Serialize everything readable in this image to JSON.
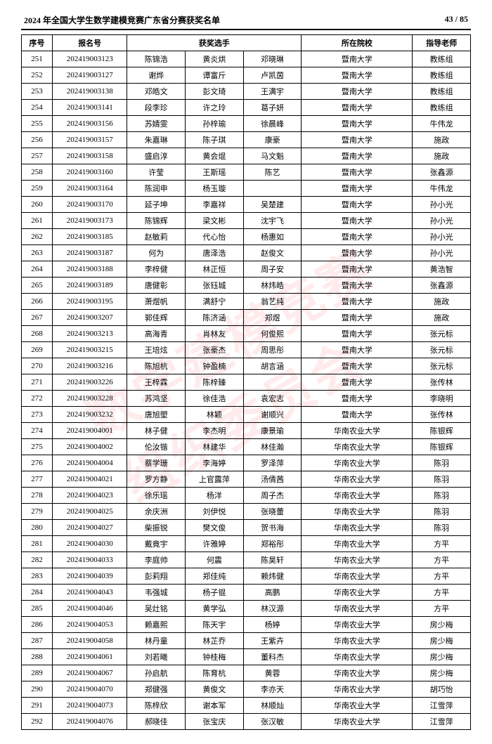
{
  "header": {
    "title": "2024 年全国大学生数学建模竞赛广东省分赛获奖名单",
    "page": "43 / 85"
  },
  "watermark": "数学建模竞赛\n组织委员会",
  "columns": {
    "seq": "序号",
    "reg": "报名号",
    "members": "获奖选手",
    "school": "所在院校",
    "advisor": "指导老师"
  },
  "rows": [
    {
      "seq": "251",
      "reg": "202419003123",
      "m": [
        "陈锦浩",
        "黄炎烘",
        "邓晓琳"
      ],
      "school": "暨南大学",
      "adv": "教练组"
    },
    {
      "seq": "252",
      "reg": "202419003127",
      "m": [
        "谢烨",
        "谭富斤",
        "卢凯茵"
      ],
      "school": "暨南大学",
      "adv": "教练组"
    },
    {
      "seq": "253",
      "reg": "202419003138",
      "m": [
        "邓皓文",
        "彭文琦",
        "王满宇"
      ],
      "school": "暨南大学",
      "adv": "教练组"
    },
    {
      "seq": "254",
      "reg": "202419003141",
      "m": [
        "段李珍",
        "许之玲",
        "葛子妍"
      ],
      "school": "暨南大学",
      "adv": "教练组"
    },
    {
      "seq": "255",
      "reg": "202419003156",
      "m": [
        "苏婧雯",
        "孙梓瑜",
        "徐晨峰"
      ],
      "school": "暨南大学",
      "adv": "牛伟龙"
    },
    {
      "seq": "256",
      "reg": "202419003157",
      "m": [
        "朱嘉琳",
        "陈子琪",
        "康豪"
      ],
      "school": "暨南大学",
      "adv": "施政"
    },
    {
      "seq": "257",
      "reg": "202419003158",
      "m": [
        "盛启淳",
        "黄会焜",
        "马文魁"
      ],
      "school": "暨南大学",
      "adv": "施政"
    },
    {
      "seq": "258",
      "reg": "202419003160",
      "m": [
        "许莹",
        "王斯瑶",
        "陈艺"
      ],
      "school": "暨南大学",
      "adv": "张鑫源"
    },
    {
      "seq": "259",
      "reg": "202419003164",
      "m": [
        "陈润申",
        "杨玉璇",
        "　"
      ],
      "school": "暨南大学",
      "adv": "牛伟龙"
    },
    {
      "seq": "260",
      "reg": "202419003170",
      "m": [
        "延子坤",
        "李嘉祥",
        "吴楚建"
      ],
      "school": "暨南大学",
      "adv": "孙小光"
    },
    {
      "seq": "261",
      "reg": "202419003173",
      "m": [
        "陈锦辉",
        "梁文彬",
        "沈宇飞"
      ],
      "school": "暨南大学",
      "adv": "孙小光"
    },
    {
      "seq": "262",
      "reg": "202419003185",
      "m": [
        "赵敏莉",
        "代心怡",
        "杨惠如"
      ],
      "school": "暨南大学",
      "adv": "孙小光"
    },
    {
      "seq": "263",
      "reg": "202419003187",
      "m": [
        "何为",
        "唐泽浩",
        "赵俊文"
      ],
      "school": "暨南大学",
      "adv": "孙小光"
    },
    {
      "seq": "264",
      "reg": "202419003188",
      "m": [
        "李梓健",
        "林正恒",
        "周子安"
      ],
      "school": "暨南大学",
      "adv": "黄浩智"
    },
    {
      "seq": "265",
      "reg": "202419003189",
      "m": [
        "唐健彰",
        "张钰城",
        "林炜皓"
      ],
      "school": "暨南大学",
      "adv": "张鑫源"
    },
    {
      "seq": "266",
      "reg": "202419003195",
      "m": [
        "萧煜帆",
        "满舒宁",
        "翁艺纯"
      ],
      "school": "暨南大学",
      "adv": "施政"
    },
    {
      "seq": "267",
      "reg": "202419003207",
      "m": [
        "郭佳辉",
        "陈济涵",
        "郑煜"
      ],
      "school": "暨南大学",
      "adv": "施政"
    },
    {
      "seq": "268",
      "reg": "202419003213",
      "m": [
        "高海青",
        "肖林友",
        "何俊熙"
      ],
      "school": "暨南大学",
      "adv": "张元标"
    },
    {
      "seq": "269",
      "reg": "202419003215",
      "m": [
        "王培炫",
        "张豪杰",
        "周思彤"
      ],
      "school": "暨南大学",
      "adv": "张元标"
    },
    {
      "seq": "270",
      "reg": "202419003216",
      "m": [
        "陈旭杭",
        "钟盈楠",
        "胡言涵"
      ],
      "school": "暨南大学",
      "adv": "张元标"
    },
    {
      "seq": "271",
      "reg": "202419003226",
      "m": [
        "王梓霖",
        "陈梓臻",
        "　"
      ],
      "school": "暨南大学",
      "adv": "张传林"
    },
    {
      "seq": "272",
      "reg": "202419003228",
      "m": [
        "苏鸿坚",
        "徐佳浩",
        "袁宏志"
      ],
      "school": "暨南大学",
      "adv": "李晓明"
    },
    {
      "seq": "273",
      "reg": "202419003232",
      "m": [
        "唐旭塱",
        "林颖",
        "谢顺兴"
      ],
      "school": "暨南大学",
      "adv": "张传林"
    },
    {
      "seq": "274",
      "reg": "202419004001",
      "m": [
        "林子健",
        "李杰明",
        "康景瑜"
      ],
      "school": "华南农业大学",
      "adv": "陈银辉"
    },
    {
      "seq": "275",
      "reg": "202419004002",
      "m": [
        "伦汝锴",
        "林建华",
        "林佳瀚"
      ],
      "school": "华南农业大学",
      "adv": "陈银辉"
    },
    {
      "seq": "276",
      "reg": "202419004004",
      "m": [
        "蔡学珊",
        "李海婷",
        "罗泽萍"
      ],
      "school": "华南农业大学",
      "adv": "陈羽"
    },
    {
      "seq": "277",
      "reg": "202419004021",
      "m": [
        "罗方静",
        "上官露萍",
        "汤倩茜"
      ],
      "school": "华南农业大学",
      "adv": "陈羽"
    },
    {
      "seq": "278",
      "reg": "202419004023",
      "m": [
        "徐乐瑶",
        "杨洋",
        "周子杰"
      ],
      "school": "华南农业大学",
      "adv": "陈羽"
    },
    {
      "seq": "279",
      "reg": "202419004025",
      "m": [
        "余庆洲",
        "刘伊悦",
        "张晓蕾"
      ],
      "school": "华南农业大学",
      "adv": "陈羽"
    },
    {
      "seq": "280",
      "reg": "202419004027",
      "m": [
        "柴振锐",
        "樊文俊",
        "贺书海"
      ],
      "school": "华南农业大学",
      "adv": "陈羽"
    },
    {
      "seq": "281",
      "reg": "202419004030",
      "m": [
        "戴竟宇",
        "许雅婷",
        "郑裕彤"
      ],
      "school": "华南农业大学",
      "adv": "方平"
    },
    {
      "seq": "282",
      "reg": "202419004033",
      "m": [
        "李庭帅",
        "何震",
        "陈昊轩"
      ],
      "school": "华南农业大学",
      "adv": "方平"
    },
    {
      "seq": "283",
      "reg": "202419004039",
      "m": [
        "彭莉翔",
        "郑佳纯",
        "赖炜健"
      ],
      "school": "华南农业大学",
      "adv": "方平"
    },
    {
      "seq": "284",
      "reg": "202419004043",
      "m": [
        "韦强城",
        "杨子锟",
        "高鹏"
      ],
      "school": "华南农业大学",
      "adv": "方平"
    },
    {
      "seq": "285",
      "reg": "202419004046",
      "m": [
        "吴灶铭",
        "黄学弘",
        "林汉源"
      ],
      "school": "华南农业大学",
      "adv": "方平"
    },
    {
      "seq": "286",
      "reg": "202419004053",
      "m": [
        "赖嘉熙",
        "陈天宇",
        "杨婷"
      ],
      "school": "华南农业大学",
      "adv": "房少梅"
    },
    {
      "seq": "287",
      "reg": "202419004058",
      "m": [
        "林丹童",
        "林芷乔",
        "王紫卉"
      ],
      "school": "华南农业大学",
      "adv": "房少梅"
    },
    {
      "seq": "288",
      "reg": "202419004061",
      "m": [
        "刘若曦",
        "钟桂梅",
        "董科杰"
      ],
      "school": "华南农业大学",
      "adv": "房少梅"
    },
    {
      "seq": "289",
      "reg": "202419004067",
      "m": [
        "孙启航",
        "陈育杭",
        "黄蓉"
      ],
      "school": "华南农业大学",
      "adv": "房少梅"
    },
    {
      "seq": "290",
      "reg": "202419004070",
      "m": [
        "郑健强",
        "黄俊文",
        "李亦天"
      ],
      "school": "华南农业大学",
      "adv": "胡巧怡"
    },
    {
      "seq": "291",
      "reg": "202419004073",
      "m": [
        "陈梓欣",
        "谢本军",
        "林顺灿"
      ],
      "school": "华南农业大学",
      "adv": "江雪萍"
    },
    {
      "seq": "292",
      "reg": "202419004076",
      "m": [
        "郝晓佳",
        "张宝庆",
        "张汉敏"
      ],
      "school": "华南农业大学",
      "adv": "江雪萍"
    }
  ]
}
